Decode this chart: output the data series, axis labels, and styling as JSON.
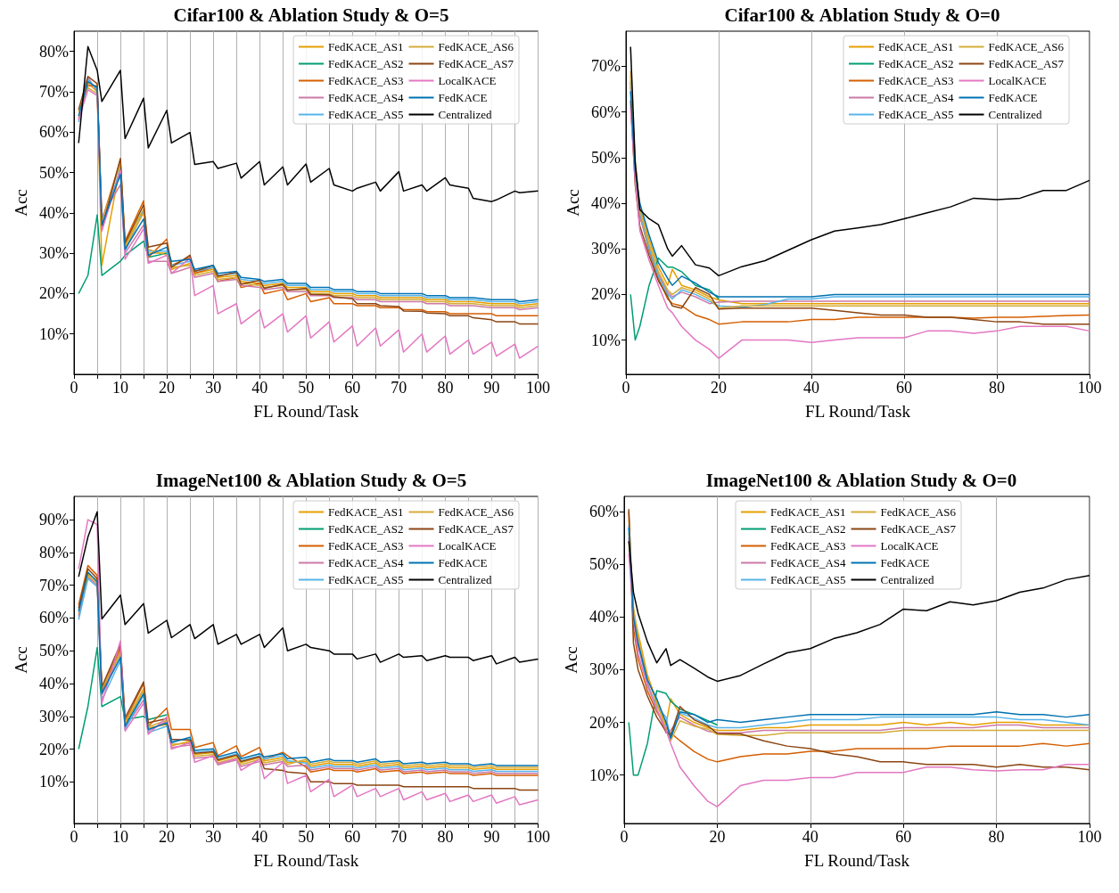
{
  "chart_data": [
    {
      "type": "line",
      "title": "Cifar100 & Ablation Study & O=5",
      "xlabel": "FL Round/Task",
      "ylabel": "Acc",
      "grid": "x",
      "legend": "top right",
      "xlim": [
        0,
        100
      ],
      "xticks": [
        0,
        {
          "value": 5,
          "label": null
        },
        10,
        {
          "value": 15,
          "label": null
        },
        20,
        {
          "value": 25,
          "label": null
        },
        30,
        {
          "value": 35,
          "label": null
        },
        40,
        {
          "value": 45,
          "label": null
        },
        50,
        {
          "value": 55,
          "label": null
        },
        60,
        {
          "value": 65,
          "label": null
        },
        70,
        {
          "value": 75,
          "label": null
        },
        80,
        {
          "value": 85,
          "label": null
        },
        90,
        {
          "value": 95,
          "label": null
        },
        100
      ],
      "ylim": [
        0,
        85
      ],
      "yticks": [
        {
          "value": 10,
          "label": "10%"
        },
        {
          "value": 20,
          "label": "20%"
        },
        {
          "value": 30,
          "label": "30%"
        },
        {
          "value": 40,
          "label": "40%"
        },
        {
          "value": 50,
          "label": "50%"
        },
        {
          "value": 60,
          "label": "60%"
        },
        {
          "value": 70,
          "label": "70%"
        },
        {
          "value": 80,
          "label": "80%"
        }
      ],
      "x": [
        1,
        3,
        5,
        6,
        10,
        11,
        15,
        16,
        20,
        21,
        25,
        26,
        30,
        31,
        35,
        36,
        40,
        41,
        45,
        46,
        50,
        51,
        55,
        56,
        60,
        61,
        65,
        66,
        70,
        71,
        75,
        76,
        80,
        81,
        85,
        86,
        90,
        91,
        95,
        96,
        100
      ],
      "series": [
        {
          "name": "FedKACE_AS1",
          "color": "#e69f00",
          "values": [
            64,
            72.2,
            70,
            27,
            52,
            32,
            41,
            30,
            30,
            26,
            27.5,
            25,
            26,
            24,
            24.5,
            23,
            22.5,
            22,
            22.5,
            21.5,
            21.5,
            20.5,
            20.5,
            20,
            20,
            19.5,
            19.5,
            19,
            19,
            19,
            19,
            18.5,
            18.5,
            18,
            18,
            18,
            17.5,
            17.5,
            17.5,
            17,
            17.5
          ]
        },
        {
          "name": "FedKACE_AS2",
          "color": "#009e73",
          "values": [
            20,
            24.5,
            39.5,
            24.5,
            28,
            29.5,
            33,
            29,
            30,
            27.5,
            null,
            null,
            null,
            null,
            null,
            null,
            null,
            null,
            null,
            null,
            null,
            null,
            null,
            null,
            null,
            null,
            null,
            null,
            null,
            null,
            null,
            null,
            null,
            null,
            null,
            null,
            null,
            null,
            null,
            null,
            null
          ]
        },
        {
          "name": "FedKACE_AS3",
          "color": "#d55e00",
          "values": [
            63.5,
            71.5,
            71.5,
            38,
            53,
            33,
            43,
            29,
            33.5,
            27,
            29,
            25,
            26.5,
            23,
            24,
            21.5,
            22.5,
            20,
            21,
            18.5,
            20,
            18,
            19,
            17.5,
            17.5,
            17,
            17,
            16.5,
            16.5,
            16,
            16,
            15.5,
            15.5,
            15,
            15,
            15,
            15,
            14.5,
            14.5,
            14.5,
            14.5
          ]
        },
        {
          "name": "FedKACE_AS4",
          "color": "#cc79a7",
          "values": [
            63,
            73.6,
            70,
            39,
            47,
            30,
            37,
            28,
            28,
            25,
            26.5,
            24,
            25,
            23,
            23.5,
            22,
            21.5,
            21,
            21.5,
            20.5,
            20.5,
            19.5,
            19.5,
            19,
            19,
            18.5,
            18.5,
            18,
            18,
            18,
            18,
            17.5,
            17.5,
            17,
            17,
            17,
            16.5,
            16.5,
            16.5,
            16,
            16.5
          ]
        },
        {
          "name": "FedKACE_AS5",
          "color": "#56b4e9",
          "values": [
            62.5,
            73,
            70.5,
            36.5,
            51,
            30.5,
            40.5,
            30.5,
            30.5,
            27,
            28,
            25.5,
            26.5,
            24.5,
            25,
            23.5,
            23,
            22.5,
            23,
            22,
            22,
            21,
            21,
            20.5,
            20.5,
            20,
            20,
            19.5,
            19.5,
            19.5,
            19.5,
            19,
            19,
            18.5,
            18.5,
            18.5,
            18,
            18,
            18,
            17.5,
            18
          ]
        },
        {
          "name": "FedKACE_AS6",
          "color": "#d4ac3a",
          "values": [
            65,
            71,
            69.5,
            37.5,
            52.5,
            31.5,
            40,
            31,
            29.5,
            26.5,
            27,
            24.5,
            25.5,
            23.5,
            24,
            22.5,
            22,
            21.5,
            22,
            21,
            21,
            20,
            20,
            19.5,
            19.5,
            19,
            19,
            18.5,
            18.5,
            18.5,
            18.5,
            18,
            18,
            17.5,
            17.5,
            17.5,
            17,
            17,
            17,
            16.5,
            17
          ]
        },
        {
          "name": "FedKACE_AS7",
          "color": "#8b4513",
          "values": [
            65.5,
            73.8,
            72,
            36,
            53.5,
            32.5,
            42,
            31.5,
            32.5,
            26.5,
            29.5,
            25.5,
            27,
            24.3,
            25.3,
            22.3,
            23.3,
            21.3,
            22.3,
            20.8,
            21.3,
            19.8,
            19.7,
            19.2,
            18.7,
            17.5,
            17.5,
            17,
            16.8,
            15.7,
            15.6,
            15.2,
            15,
            14.5,
            14.5,
            14,
            13.5,
            13,
            13,
            12.5,
            12.5
          ]
        },
        {
          "name": "LocalKACE",
          "color": "#e377c2",
          "values": [
            63,
            70.5,
            69,
            35.5,
            50.5,
            28.5,
            36,
            27.5,
            29.5,
            25,
            28.8,
            19.5,
            22,
            15,
            17.5,
            12.5,
            16,
            11.5,
            15,
            10.5,
            14.5,
            9,
            13,
            8,
            12,
            7,
            11.5,
            7,
            11,
            5.5,
            10,
            5.5,
            9.5,
            5,
            8.5,
            5,
            8,
            4.5,
            7.5,
            4,
            7
          ]
        },
        {
          "name": "FedKACE",
          "color": "#0072b2",
          "values": [
            64,
            72.5,
            71,
            37,
            49.5,
            31,
            38.5,
            29.5,
            31.5,
            28,
            28.5,
            26,
            27,
            25,
            25.5,
            24,
            23.5,
            23,
            23.5,
            22.5,
            22.5,
            21.5,
            21.5,
            21,
            21,
            20.5,
            20.5,
            20,
            20,
            20,
            20,
            19.5,
            19.5,
            19,
            19,
            19,
            18.5,
            18.5,
            18.5,
            18,
            18.5
          ]
        },
        {
          "name": "Centralized",
          "color": "#000000",
          "values": [
            57.3,
            81.2,
            75.3,
            67.6,
            75.3,
            58.4,
            68.4,
            56.1,
            65.4,
            57.3,
            59.9,
            52,
            52.7,
            51,
            52.3,
            48.6,
            52.7,
            46.9,
            51.4,
            46.9,
            52.1,
            47.6,
            51,
            46.9,
            45.4,
            46.1,
            47.6,
            45.4,
            50.2,
            45.4,
            46.9,
            45.4,
            48.7,
            46.9,
            46.1,
            43.6,
            42.8,
            43.2,
            45.4,
            45,
            45.4
          ]
        }
      ]
    },
    {
      "type": "line",
      "title": "Cifar100 & Ablation Study & O=0",
      "xlabel": "FL Round/Task",
      "ylabel": "Acc",
      "grid": "x",
      "legend": "top right",
      "xlim": [
        0,
        100
      ],
      "xticks": [
        0,
        20,
        40,
        60,
        80,
        100
      ],
      "ylim": [
        2.5,
        77.7
      ],
      "yticks": [
        {
          "value": 10,
          "label": "10%"
        },
        {
          "value": 20,
          "label": "20%"
        },
        {
          "value": 30,
          "label": "30%"
        },
        {
          "value": 40,
          "label": "40%"
        },
        {
          "value": 50,
          "label": "50%"
        },
        {
          "value": 60,
          "label": "60%"
        },
        {
          "value": 70,
          "label": "70%"
        }
      ],
      "x": [
        1,
        2,
        3,
        5,
        7,
        9,
        10,
        12,
        15,
        18,
        20,
        25,
        30,
        35,
        40,
        45,
        50,
        55,
        60,
        65,
        70,
        75,
        80,
        85,
        90,
        95,
        100
      ],
      "series": [
        {
          "name": "FedKACE_AS1",
          "color": "#e69f00",
          "values": [
            68,
            49,
            39,
            32,
            26,
            22,
            25.5,
            22,
            21,
            19.5,
            18.8,
            18,
            18,
            18,
            18,
            18,
            18,
            18,
            18,
            18,
            18,
            18,
            18,
            18,
            18,
            18,
            18
          ]
        },
        {
          "name": "FedKACE_AS2",
          "color": "#009e73",
          "values": [
            20,
            10,
            13,
            22,
            28,
            26,
            26,
            25,
            22,
            21,
            19,
            null,
            null,
            null,
            null,
            null,
            null,
            null,
            null,
            null,
            null,
            null,
            null,
            null,
            null,
            null,
            null
          ]
        },
        {
          "name": "FedKACE_AS3",
          "color": "#d55e00",
          "values": [
            66.5,
            46.5,
            37.5,
            29.5,
            23.5,
            19,
            18,
            17.5,
            15.5,
            14.5,
            13.5,
            14,
            14,
            14,
            14.5,
            14.5,
            15,
            15,
            15,
            15,
            15,
            14.8,
            15,
            15,
            15.2,
            15.4,
            15.5
          ]
        },
        {
          "name": "FedKACE_AS4",
          "color": "#cc79a7",
          "values": [
            65.5,
            46,
            37,
            30.5,
            24.5,
            20.5,
            19.5,
            20.5,
            19.5,
            18,
            18.3,
            18.5,
            18.5,
            18.5,
            18.5,
            18.5,
            18.5,
            18.5,
            18.5,
            18.5,
            18.5,
            18.5,
            18.5,
            18.5,
            18.5,
            18.5,
            18.5
          ]
        },
        {
          "name": "FedKACE_AS5",
          "color": "#56b4e9",
          "values": [
            67,
            47.5,
            38,
            30,
            24,
            20,
            19,
            21,
            20,
            18.5,
            17.5,
            17.2,
            17.8,
            19,
            19,
            19.5,
            19.5,
            19.5,
            19.5,
            19.5,
            19.5,
            19.5,
            19.5,
            19.5,
            19.5,
            19.5,
            19.5
          ]
        },
        {
          "name": "FedKACE_AS6",
          "color": "#d4ac3a",
          "values": [
            69,
            48,
            38.5,
            31,
            25,
            21,
            20,
            21.5,
            20.5,
            19,
            17,
            17.5,
            17.5,
            17.5,
            17.5,
            17.5,
            17.5,
            17.5,
            17.5,
            17.5,
            17.5,
            17.5,
            17.5,
            17.5,
            17.5,
            17.5,
            17.5
          ]
        },
        {
          "name": "FedKACE_AS7",
          "color": "#8b4513",
          "values": [
            62.5,
            44,
            35,
            28.5,
            23,
            19.5,
            17.5,
            17,
            21.5,
            20,
            16.8,
            17,
            17,
            17,
            17,
            16.5,
            16,
            15.5,
            15.5,
            15,
            15,
            14.5,
            14,
            14,
            13.5,
            13.5,
            13.5
          ]
        },
        {
          "name": "LocalKACE",
          "color": "#e377c2",
          "values": [
            61,
            45,
            34,
            27.5,
            22,
            17,
            16,
            13,
            10,
            8,
            6,
            10,
            10,
            10,
            9.5,
            10,
            10.5,
            10.5,
            10.5,
            12,
            12,
            11.5,
            12,
            13,
            13,
            13,
            12
          ]
        },
        {
          "name": "FedKACE",
          "color": "#0072b2",
          "values": [
            64.5,
            47,
            40,
            33,
            27,
            23.5,
            22,
            24,
            22.5,
            20.5,
            19.5,
            19.5,
            19.5,
            19.5,
            19.5,
            20,
            20,
            20,
            20,
            20,
            20,
            20,
            20,
            20,
            20,
            20,
            20
          ]
        },
        {
          "name": "Centralized",
          "color": "#000000",
          "values": [
            74.3,
            49,
            38.6,
            36.6,
            35.3,
            30,
            28.4,
            30.7,
            26.5,
            25.8,
            24.1,
            26.1,
            27.4,
            29.7,
            32,
            33.9,
            34.6,
            35.3,
            36.6,
            37.9,
            39.2,
            41.1,
            40.8,
            41.1,
            42.8,
            42.8,
            45
          ]
        }
      ]
    },
    {
      "type": "line",
      "title": "ImageNet100 & Ablation Study & O=5",
      "xlabel": "FL Round/Task",
      "ylabel": "Acc",
      "grid": "x",
      "legend": "top right",
      "xlim": [
        0,
        100
      ],
      "xticks": [
        0,
        {
          "value": 5,
          "label": null
        },
        10,
        {
          "value": 15,
          "label": null
        },
        20,
        {
          "value": 25,
          "label": null
        },
        30,
        {
          "value": 35,
          "label": null
        },
        40,
        {
          "value": 45,
          "label": null
        },
        50,
        {
          "value": 55,
          "label": null
        },
        60,
        {
          "value": 65,
          "label": null
        },
        70,
        {
          "value": 75,
          "label": null
        },
        80,
        {
          "value": 85,
          "label": null
        },
        90,
        {
          "value": 95,
          "label": null
        },
        100
      ],
      "ylim": [
        -2.7,
        97.1
      ],
      "yticks": [
        {
          "value": 10,
          "label": "10%"
        },
        {
          "value": 20,
          "label": "20%"
        },
        {
          "value": 30,
          "label": "30%"
        },
        {
          "value": 40,
          "label": "40%"
        },
        {
          "value": 50,
          "label": "50%"
        },
        {
          "value": 60,
          "label": "60%"
        },
        {
          "value": 70,
          "label": "70%"
        },
        {
          "value": 80,
          "label": "80%"
        },
        {
          "value": 90,
          "label": "90%"
        }
      ],
      "x": [
        1,
        3,
        5,
        6,
        10,
        11,
        15,
        16,
        20,
        21,
        25,
        26,
        30,
        31,
        35,
        36,
        40,
        41,
        45,
        46,
        50,
        51,
        55,
        56,
        60,
        61,
        65,
        66,
        70,
        71,
        75,
        76,
        80,
        81,
        85,
        86,
        90,
        91,
        95,
        96,
        100
      ],
      "series": [
        {
          "name": "FedKACE_AS1",
          "color": "#e69f00",
          "values": [
            61,
            73.5,
            71.5,
            37.5,
            50,
            27.5,
            38,
            26.5,
            27.5,
            21,
            22.4,
            18.4,
            18.9,
            16.4,
            17.9,
            15.9,
            17.4,
            16.4,
            17.4,
            15.9,
            16.3,
            14.8,
            15.8,
            15.3,
            15.3,
            14.8,
            15.8,
            14.8,
            15.3,
            14.3,
            14.8,
            14.3,
            14.8,
            14.3,
            14.3,
            13.8,
            14.3,
            13.8,
            13.8,
            13.8,
            13.8
          ]
        },
        {
          "name": "FedKACE_AS2",
          "color": "#009e73",
          "values": [
            20,
            33,
            51,
            33,
            36,
            29,
            30,
            29,
            30.5,
            null,
            null,
            null,
            null,
            null,
            null,
            null,
            null,
            null,
            null,
            null,
            null,
            null,
            null,
            null,
            null,
            null,
            null,
            null,
            null,
            null,
            null,
            null,
            null,
            null,
            null,
            null,
            null,
            null,
            null,
            null,
            null
          ]
        },
        {
          "name": "FedKACE_AS3",
          "color": "#d55e00",
          "values": [
            64,
            76,
            73,
            38,
            51,
            28.5,
            40,
            27,
            32.5,
            26,
            26,
            20.5,
            22,
            18,
            21,
            17.7,
            20.5,
            16.9,
            19,
            18,
            14.5,
            13,
            14,
            13.5,
            13.5,
            13,
            14,
            13,
            13.5,
            12.5,
            13,
            12.5,
            13,
            12.5,
            12.5,
            12,
            12.5,
            12,
            12,
            12,
            12
          ]
        },
        {
          "name": "FedKACE_AS4",
          "color": "#cc79a7",
          "values": [
            60.5,
            72.5,
            70,
            36.5,
            49.5,
            26.5,
            35,
            25.5,
            28.5,
            20.5,
            21.2,
            17.2,
            17.7,
            15.2,
            16.7,
            14.7,
            16.2,
            15.2,
            16.2,
            14.7,
            15.1,
            13.6,
            14.6,
            14.1,
            14.1,
            13.6,
            14.6,
            13.6,
            14.1,
            13.1,
            13.6,
            13.1,
            13.6,
            13.1,
            13.1,
            12.6,
            13.1,
            12.6,
            12.6,
            12.6,
            12.6
          ]
        },
        {
          "name": "FedKACE_AS5",
          "color": "#56b4e9",
          "values": [
            59.5,
            72,
            69.5,
            35,
            47,
            26,
            36.5,
            25,
            27,
            22.5,
            23,
            19,
            19.5,
            17,
            18.5,
            16.5,
            18,
            17,
            18,
            16.5,
            15.7,
            14.2,
            15.2,
            14.7,
            14.7,
            14.2,
            15.2,
            14.2,
            14.7,
            13.7,
            14.2,
            13.7,
            14.2,
            13.7,
            13.7,
            13.2,
            13.7,
            13.2,
            13.2,
            13.2,
            13.2
          ]
        },
        {
          "name": "FedKACE_AS6",
          "color": "#d4ac3a",
          "values": [
            62.5,
            73,
            70.5,
            38.5,
            49,
            28,
            38.5,
            26.8,
            28.8,
            21.5,
            21.8,
            17.8,
            18.3,
            15.8,
            17.3,
            15.3,
            16.8,
            15.8,
            16.8,
            15.3,
            16.9,
            15.4,
            16.4,
            15.9,
            15.9,
            15.4,
            16.4,
            15.4,
            15.9,
            14.9,
            15.4,
            14.9,
            15.4,
            14.9,
            14.9,
            14.4,
            14.9,
            14.4,
            14.4,
            14.4,
            14.4
          ]
        },
        {
          "name": "FedKACE_AS7",
          "color": "#8b4513",
          "values": [
            63,
            75,
            72,
            39,
            52,
            29.5,
            40.5,
            28,
            29.3,
            23,
            22.7,
            18.7,
            19.2,
            16.7,
            18.2,
            16.2,
            17.7,
            14,
            13.5,
            13,
            12.5,
            10,
            10,
            9.5,
            9.5,
            9,
            9,
            9,
            9,
            8.5,
            8.5,
            8.5,
            8.5,
            8.5,
            8.5,
            8,
            8,
            8,
            8,
            7.5,
            7.5
          ]
        },
        {
          "name": "LocalKACE",
          "color": "#e377c2",
          "values": [
            75,
            90,
            88.5,
            34,
            53,
            25.5,
            34,
            24.5,
            29.8,
            20,
            22,
            16,
            18,
            15.5,
            17,
            13.5,
            17,
            11,
            16,
            9.5,
            12,
            7,
            10.8,
            5.5,
            9,
            5.5,
            8,
            5.5,
            8,
            4.5,
            7,
            4.5,
            6.5,
            4,
            6,
            4,
            6,
            3.5,
            5.5,
            3,
            4.5
          ]
        },
        {
          "name": "FedKACE",
          "color": "#0072b2",
          "values": [
            62,
            74,
            71,
            37,
            48,
            27,
            37,
            26,
            28,
            22,
            23.6,
            19.6,
            20.1,
            17.6,
            19.1,
            17.1,
            18.6,
            17.6,
            18.6,
            17.1,
            17.5,
            16,
            17,
            16.5,
            16.5,
            16,
            17,
            16,
            16.5,
            15.5,
            16,
            15.5,
            16,
            15.5,
            15.5,
            15,
            15.5,
            15,
            15,
            15,
            15
          ]
        },
        {
          "name": "Centralized",
          "color": "#000000",
          "values": [
            72.6,
            84.7,
            92.4,
            59.7,
            67,
            58,
            64.4,
            55.4,
            59.3,
            54,
            58,
            53.7,
            58,
            52,
            55,
            52,
            55,
            51,
            57,
            50,
            52,
            51,
            50,
            49,
            49,
            47.5,
            49,
            46.5,
            49,
            48,
            48.5,
            47,
            48.5,
            48,
            48,
            47,
            48.5,
            46,
            48,
            46.5,
            47.5
          ]
        }
      ]
    },
    {
      "type": "line",
      "title": "ImageNet100 & Ablation Study & O=0",
      "xlabel": "FL Round/Task",
      "ylabel": "Acc",
      "grid": "x",
      "legend": "top",
      "xlim": [
        0,
        100
      ],
      "xticks": [
        0,
        20,
        40,
        60,
        80,
        100
      ],
      "ylim": [
        0.8,
        62.9
      ],
      "yticks": [
        {
          "value": 10,
          "label": "10%"
        },
        {
          "value": 20,
          "label": "20%"
        },
        {
          "value": 30,
          "label": "30%"
        },
        {
          "value": 40,
          "label": "40%"
        },
        {
          "value": 50,
          "label": "50%"
        },
        {
          "value": 60,
          "label": "60%"
        }
      ],
      "x": [
        1,
        2,
        3,
        5,
        7,
        9,
        10,
        12,
        15,
        18,
        20,
        25,
        30,
        35,
        40,
        45,
        50,
        55,
        60,
        65,
        70,
        75,
        80,
        85,
        90,
        95,
        100
      ],
      "series": [
        {
          "name": "FedKACE_AS1",
          "color": "#e69f00",
          "values": [
            56,
            41,
            37,
            29,
            24,
            19.5,
            24.5,
            21.5,
            20,
            19,
            18.5,
            18.5,
            19,
            19,
            19.5,
            19.5,
            19.5,
            19.5,
            20,
            19.5,
            20,
            19.5,
            20,
            20,
            19.5,
            19.5,
            19.5
          ]
        },
        {
          "name": "FedKACE_AS2",
          "color": "#009e73",
          "values": [
            20,
            10,
            10,
            16,
            26,
            25.5,
            24,
            22.5,
            21.5,
            20.3,
            19.5,
            null,
            null,
            null,
            null,
            null,
            null,
            null,
            null,
            null,
            null,
            null,
            null,
            null,
            null,
            null,
            null
          ]
        },
        {
          "name": "FedKACE_AS3",
          "color": "#d55e00",
          "values": [
            60,
            38,
            32,
            26,
            22,
            19,
            18,
            16.5,
            14.5,
            13,
            12.5,
            13.5,
            14,
            14,
            14.5,
            14.5,
            15,
            15,
            15,
            15,
            15.5,
            15.5,
            15.5,
            15.5,
            16,
            15.5,
            16
          ]
        },
        {
          "name": "FedKACE_AS4",
          "color": "#cc79a7",
          "values": [
            55,
            39.5,
            34.5,
            27.5,
            22.5,
            18,
            18.5,
            21,
            19.5,
            18.3,
            18,
            18,
            18.5,
            18.5,
            18.5,
            18.5,
            18.5,
            18.5,
            19,
            19,
            19,
            19,
            19.5,
            19.5,
            19,
            19,
            19
          ]
        },
        {
          "name": "FedKACE_AS5",
          "color": "#56b4e9",
          "values": [
            57.5,
            40.5,
            35.5,
            27,
            23,
            21,
            17,
            21.8,
            20.8,
            19.5,
            19,
            19,
            19.5,
            20,
            20.5,
            20.5,
            20.5,
            21,
            21,
            21,
            21,
            21,
            21,
            20.5,
            20.5,
            20,
            19.5
          ]
        },
        {
          "name": "FedKACE_AS6",
          "color": "#d4ac3a",
          "values": [
            58.5,
            42,
            36,
            28.5,
            23.5,
            18.8,
            16.5,
            20.3,
            19.3,
            18.7,
            17.7,
            17.5,
            17.5,
            18,
            18,
            18,
            18,
            18,
            18.5,
            18.5,
            18.5,
            18.5,
            18.5,
            18.5,
            18.5,
            18.5,
            18.5
          ]
        },
        {
          "name": "FedKACE_AS7",
          "color": "#8b4513",
          "values": [
            60.5,
            35,
            30,
            25,
            21,
            18.3,
            17.5,
            23,
            20.5,
            19.3,
            17.9,
            17.8,
            16.5,
            15.5,
            15,
            14,
            13.5,
            12.5,
            12.5,
            12,
            12,
            12,
            11.5,
            12,
            11.5,
            11.5,
            11
          ]
        },
        {
          "name": "LocalKACE",
          "color": "#e377c2",
          "values": [
            52,
            40,
            33,
            27,
            22.5,
            18.5,
            16,
            11.5,
            8,
            5,
            4,
            8,
            9,
            9,
            9.5,
            9.5,
            10.5,
            10.5,
            10.5,
            11.5,
            11.5,
            11,
            10.8,
            11,
            11,
            12,
            12
          ]
        },
        {
          "name": "FedKACE",
          "color": "#0072b2",
          "values": [
            57,
            40,
            35,
            28,
            24.5,
            20,
            17,
            22,
            21.5,
            20,
            20.5,
            20,
            20.5,
            21,
            21.5,
            21.5,
            21.5,
            21.5,
            21.5,
            21.5,
            21.5,
            21.5,
            22,
            21.5,
            21.5,
            21,
            21.5
          ]
        },
        {
          "name": "Centralized",
          "color": "#000000",
          "values": [
            54.4,
            44.7,
            40.7,
            35.3,
            31.3,
            34,
            30.8,
            31.9,
            30.3,
            28.6,
            27.8,
            28.9,
            31.1,
            33.2,
            34,
            35.9,
            37,
            38.6,
            41.5,
            41.2,
            42.9,
            42.3,
            43.1,
            44.7,
            45.5,
            47.1,
            47.9
          ]
        }
      ]
    }
  ]
}
